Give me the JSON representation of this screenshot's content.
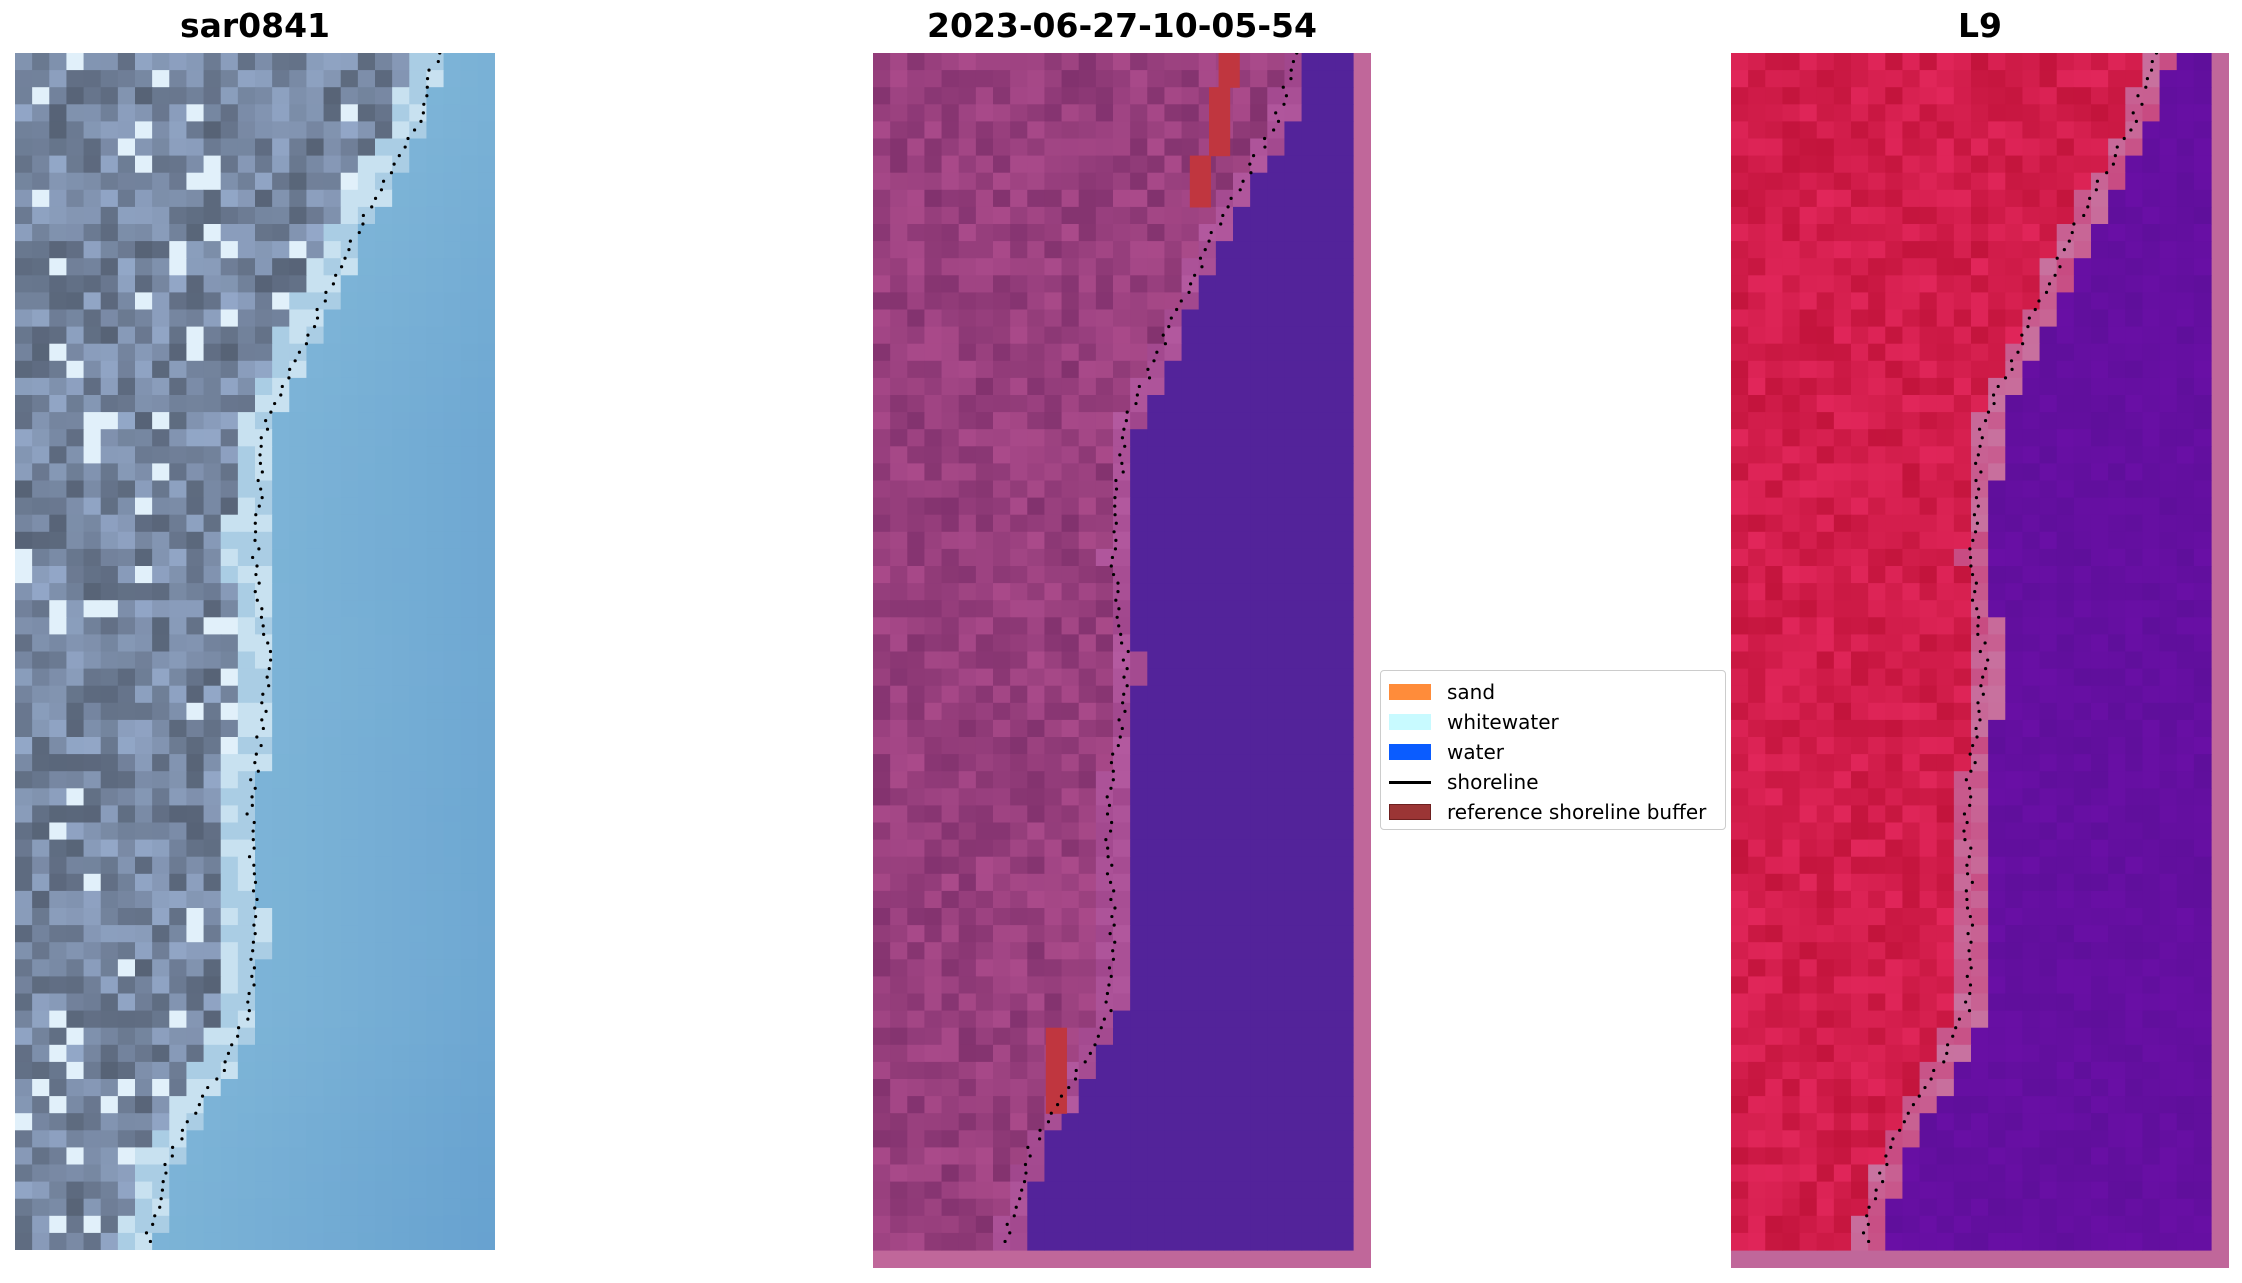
{
  "panels": [
    {
      "title": "sar0841",
      "image": "true-color-satellite-image"
    },
    {
      "title": "2023-06-27-10-05-54",
      "image": "classified-overlay-image"
    },
    {
      "title": "L9",
      "image": "false-color-index-image"
    }
  ],
  "legend": {
    "items": [
      {
        "label": "sand",
        "color": "#ff8c3a",
        "kind": "patch"
      },
      {
        "label": "whitewater",
        "color": "#c8faff",
        "kind": "patch"
      },
      {
        "label": "water",
        "color": "#0a5cff",
        "kind": "patch"
      },
      {
        "label": "shoreline",
        "color": "#000000",
        "kind": "line"
      },
      {
        "label": "reference shoreline buffer",
        "color": "#9b3535",
        "kind": "patch"
      }
    ]
  }
}
